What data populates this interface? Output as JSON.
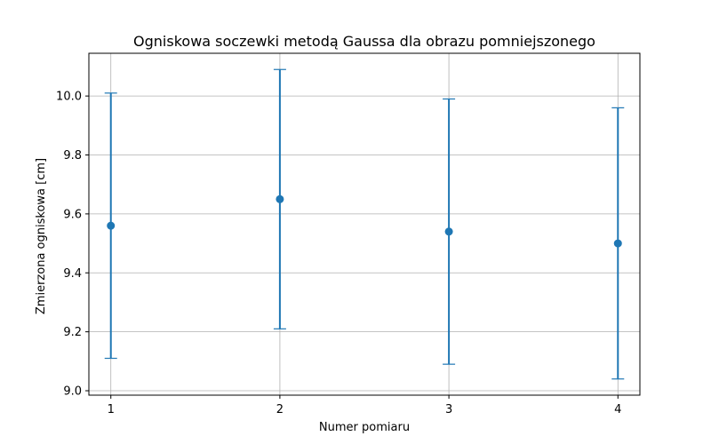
{
  "chart_data": {
    "type": "scatter",
    "title": "Ogniskowa soczewki metodą Gaussa dla obrazu pomniejszonego",
    "xlabel": "Numer pomiaru",
    "ylabel": "Zmierzona ogniskowa [cm]",
    "x": [
      1,
      2,
      3,
      4
    ],
    "y": [
      9.56,
      9.65,
      9.54,
      9.5
    ],
    "yerr": [
      0.45,
      0.44,
      0.45,
      0.46
    ],
    "xlim": [
      0.87,
      4.13
    ],
    "ylim": [
      8.985,
      10.145
    ],
    "xticks": [
      "1",
      "2",
      "3",
      "4"
    ],
    "yticks": [
      "9.0",
      "9.2",
      "9.4",
      "9.6",
      "9.8",
      "10.0"
    ],
    "grid": true,
    "color": "#1f77b4"
  }
}
